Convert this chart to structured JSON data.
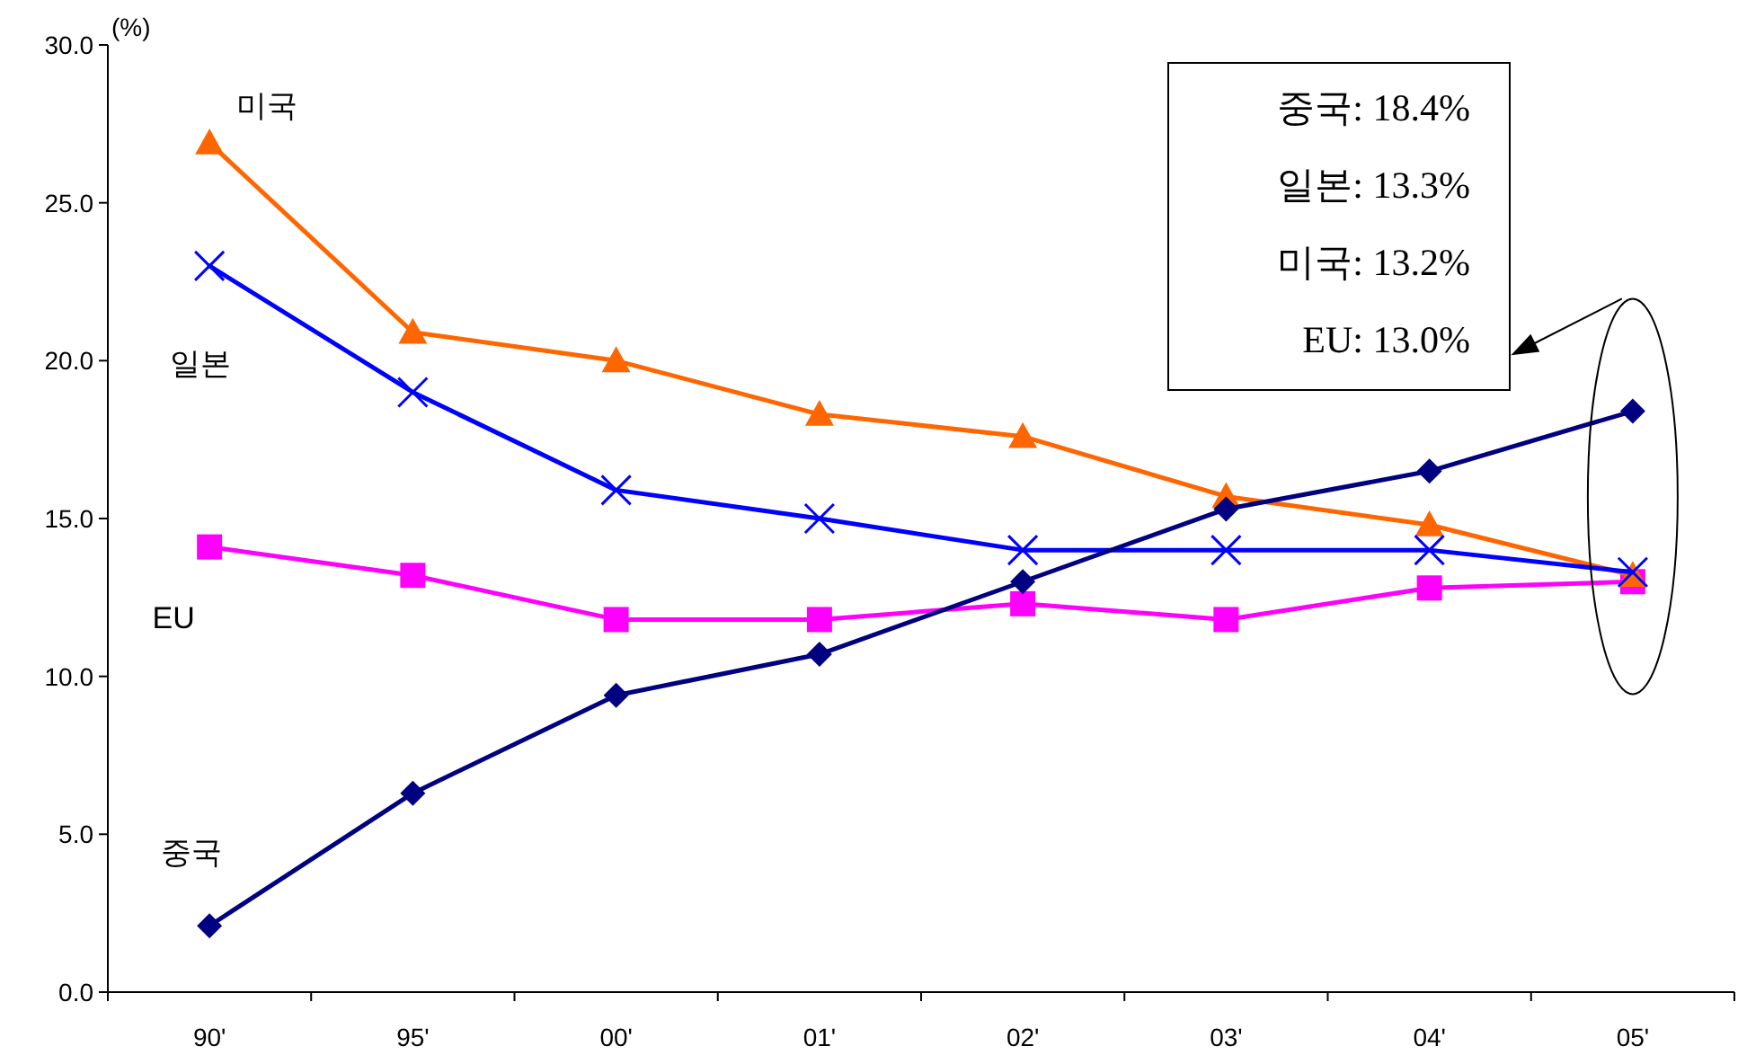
{
  "chart_data": {
    "type": "line",
    "ylabel": "(%)",
    "categories": [
      "90'",
      "95'",
      "00'",
      "01'",
      "02'",
      "03'",
      "04'",
      "05'"
    ],
    "ylim": [
      0,
      30
    ],
    "yticks": [
      {
        "value": 0,
        "label": "0.0"
      },
      {
        "value": 5,
        "label": "5.0"
      },
      {
        "value": 10,
        "label": "10.0"
      },
      {
        "value": 15,
        "label": "15.0"
      },
      {
        "value": 20,
        "label": "20.0"
      },
      {
        "value": 25,
        "label": "25.0"
      },
      {
        "value": 30,
        "label": "30.0"
      }
    ],
    "series": [
      {
        "name": "미국",
        "color": "#ff6600",
        "marker": "triangle",
        "values": [
          26.9,
          20.9,
          20.0,
          18.3,
          17.6,
          15.7,
          14.8,
          13.2
        ]
      },
      {
        "name": "일본",
        "color": "#0000ff",
        "marker": "cross",
        "values": [
          23.0,
          19.0,
          15.9,
          15.0,
          14.0,
          14.0,
          14.0,
          13.3
        ]
      },
      {
        "name": "EU",
        "color": "#ff00ff",
        "marker": "square",
        "values": [
          14.1,
          13.2,
          11.8,
          11.8,
          12.3,
          11.8,
          12.8,
          13.0
        ]
      },
      {
        "name": "중국",
        "color": "#000080",
        "marker": "diamond",
        "values": [
          2.1,
          6.3,
          9.4,
          10.7,
          13.0,
          15.3,
          16.5,
          18.4
        ]
      }
    ],
    "annotations": [
      "중국:  18.4%",
      "일본:  13.3%",
      "미국:  13.2%",
      "EU:  13.0%"
    ],
    "grid": false,
    "legend": false
  }
}
